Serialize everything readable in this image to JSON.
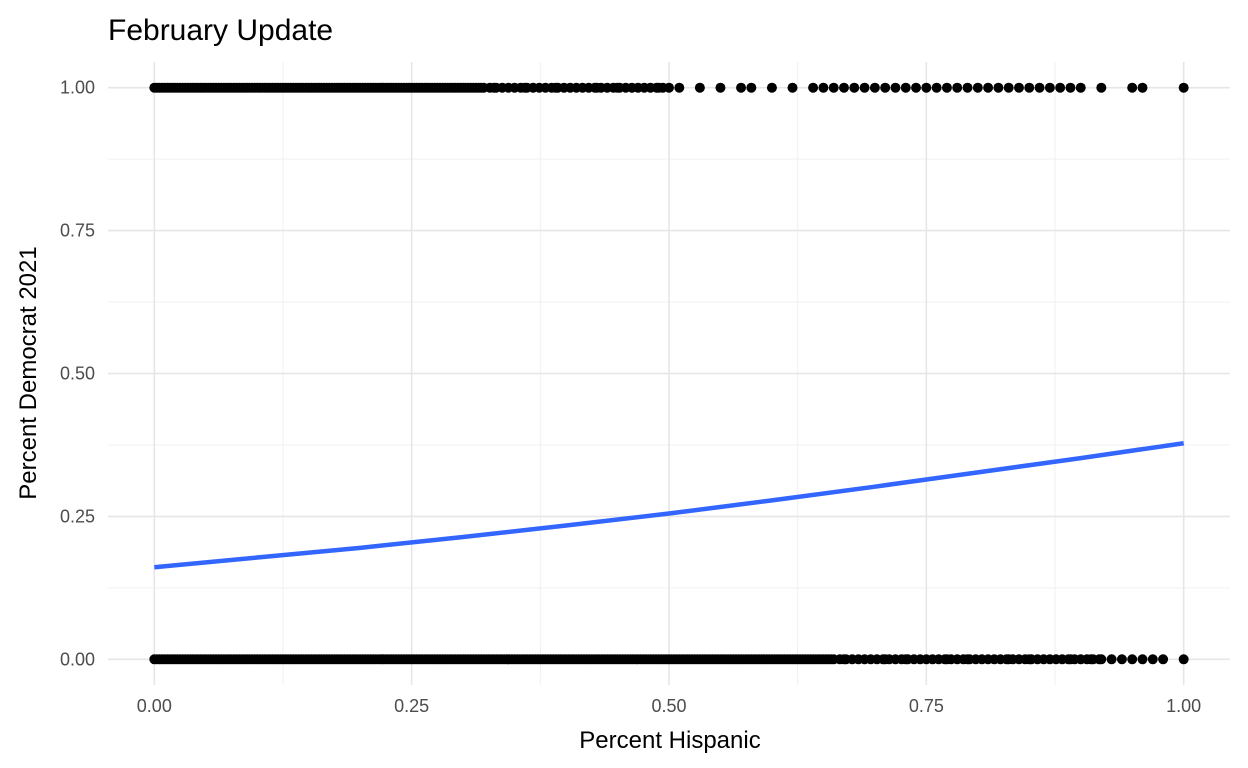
{
  "chart_data": {
    "type": "scatter",
    "title": "February Update",
    "xlabel": "Percent Hispanic",
    "ylabel": "Percent Democrat 2021",
    "xlim": [
      -0.045,
      1.045
    ],
    "ylim": [
      -0.045,
      1.045
    ],
    "x_ticks": [
      0,
      0.25,
      0.5,
      0.75,
      1
    ],
    "x_tick_labels": [
      "0.00",
      "0.25",
      "0.50",
      "0.75",
      "1.00"
    ],
    "y_ticks": [
      0,
      0.25,
      0.5,
      0.75,
      1
    ],
    "y_tick_labels": [
      "0.00",
      "0.25",
      "0.50",
      "0.75",
      "1.00"
    ],
    "x_minor_ticks": [
      0.125,
      0.375,
      0.625,
      0.875
    ],
    "y_minor_ticks": [
      0.125,
      0.375,
      0.625,
      0.875
    ],
    "grid": true,
    "legend": "none",
    "point_color": "#000000",
    "line_color": "#3366ff",
    "series": [
      {
        "type": "scatter",
        "y_value": 1,
        "x_dense_ranges": [
          [
            0,
            0.32
          ]
        ],
        "x_medium_ranges": [
          [
            0.32,
            0.5
          ]
        ],
        "x_sparse_points": [
          0.33,
          0.36,
          0.39,
          0.41,
          0.43,
          0.45,
          0.47,
          0.49,
          0.5,
          0.51,
          0.53,
          0.55,
          0.57,
          0.58,
          0.6,
          0.62,
          0.64,
          0.65,
          0.66,
          0.67,
          0.68,
          0.69,
          0.7,
          0.71,
          0.72,
          0.73,
          0.74,
          0.75,
          0.76,
          0.77,
          0.78,
          0.79,
          0.8,
          0.81,
          0.82,
          0.83,
          0.84,
          0.85,
          0.86,
          0.87,
          0.88,
          0.89,
          0.9,
          0.92,
          0.95,
          0.96,
          1.0
        ]
      },
      {
        "type": "scatter",
        "y_value": 0,
        "x_dense_ranges": [
          [
            0,
            0.66
          ]
        ],
        "x_medium_ranges": [
          [
            0.66,
            0.92
          ]
        ],
        "x_sparse_points": [
          0.67,
          0.69,
          0.71,
          0.73,
          0.75,
          0.77,
          0.79,
          0.81,
          0.83,
          0.85,
          0.87,
          0.89,
          0.9,
          0.91,
          0.92,
          0.93,
          0.94,
          0.95,
          0.96,
          0.97,
          0.98,
          1.0
        ]
      },
      {
        "type": "line",
        "smooth": "logistic",
        "x": [
          0,
          0.1,
          0.2,
          0.3,
          0.4,
          0.5,
          0.6,
          0.7,
          0.8,
          0.9,
          1.0
        ],
        "y": [
          0.161,
          0.178,
          0.195,
          0.214,
          0.234,
          0.255,
          0.278,
          0.302,
          0.327,
          0.352,
          0.378
        ]
      }
    ]
  }
}
